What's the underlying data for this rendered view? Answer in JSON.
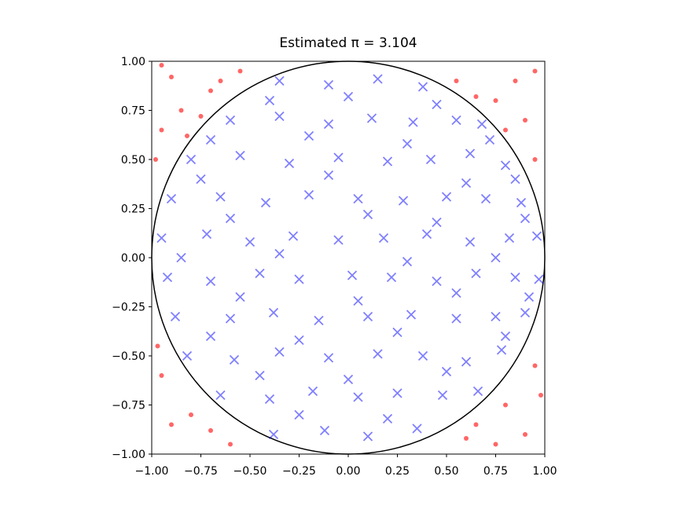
{
  "chart_data": {
    "type": "scatter",
    "title": "Estimated π = 3.104",
    "xlim": [
      -1,
      1
    ],
    "ylim": [
      -1,
      1
    ],
    "xticks": [
      {
        "value": -1,
        "label": "−1.00"
      },
      {
        "value": -0.75,
        "label": "−0.75"
      },
      {
        "value": -0.5,
        "label": "−0.50"
      },
      {
        "value": -0.25,
        "label": "−0.25"
      },
      {
        "value": 0,
        "label": "0.00"
      },
      {
        "value": 0.25,
        "label": "0.25"
      },
      {
        "value": 0.5,
        "label": "0.50"
      },
      {
        "value": 0.75,
        "label": "0.75"
      },
      {
        "value": 1,
        "label": "1.00"
      }
    ],
    "yticks": [
      {
        "value": -1,
        "label": "−1.00"
      },
      {
        "value": -0.75,
        "label": "−0.75"
      },
      {
        "value": -0.5,
        "label": "−0.50"
      },
      {
        "value": -0.25,
        "label": "−0.25"
      },
      {
        "value": 0,
        "label": "0.00"
      },
      {
        "value": 0.25,
        "label": "0.25"
      },
      {
        "value": 0.5,
        "label": "0.50"
      },
      {
        "value": 0.75,
        "label": "0.75"
      },
      {
        "value": 1,
        "label": "1.00"
      }
    ],
    "grid": false,
    "series": [
      {
        "color": "#0000ff",
        "marker": "x",
        "x": [
          -0.35,
          -0.1,
          0.15,
          0.38,
          -0.6,
          -0.35,
          -0.1,
          0.12,
          0.33,
          0.55,
          0.68,
          -0.8,
          -0.55,
          -0.3,
          -0.05,
          0.2,
          0.42,
          0.62,
          0.8,
          -0.9,
          -0.65,
          -0.42,
          -0.2,
          0.05,
          0.28,
          0.5,
          0.7,
          0.88,
          -0.95,
          -0.72,
          -0.5,
          -0.28,
          -0.05,
          0.18,
          0.4,
          0.62,
          0.82,
          0.96,
          -0.92,
          -0.7,
          -0.45,
          -0.25,
          0.02,
          0.22,
          0.45,
          0.65,
          0.85,
          0.97,
          -0.88,
          -0.6,
          -0.38,
          -0.15,
          0.1,
          0.32,
          0.55,
          0.75,
          0.9,
          -0.82,
          -0.58,
          -0.35,
          -0.1,
          0.15,
          0.38,
          0.6,
          0.78,
          -0.65,
          -0.4,
          -0.18,
          0.05,
          0.25,
          0.48,
          0.66,
          -0.38,
          -0.12,
          0.1,
          0.35,
          -0.4,
          0,
          0.45,
          -0.7,
          -0.2,
          0.3,
          0.72,
          -0.75,
          -0.1,
          0.6,
          0.85,
          -0.6,
          0.1,
          0.45,
          0.9,
          -0.85,
          -0.35,
          0.3,
          0.75,
          -0.55,
          0.05,
          0.55,
          0.92,
          -0.7,
          -0.25,
          0.25,
          0.8,
          -0.45,
          0,
          0.5,
          -0.25,
          0.2
        ],
        "values": [
          0.9,
          0.88,
          0.91,
          0.87,
          0.7,
          0.72,
          0.68,
          0.71,
          0.69,
          0.7,
          0.68,
          0.5,
          0.52,
          0.48,
          0.51,
          0.49,
          0.5,
          0.53,
          0.47,
          0.3,
          0.31,
          0.28,
          0.32,
          0.3,
          0.29,
          0.31,
          0.3,
          0.28,
          0.1,
          0.12,
          0.08,
          0.11,
          0.09,
          0.1,
          0.12,
          0.08,
          0.1,
          0.11,
          -0.1,
          -0.12,
          -0.08,
          -0.11,
          -0.09,
          -0.1,
          -0.12,
          -0.08,
          -0.1,
          -0.11,
          -0.3,
          -0.31,
          -0.28,
          -0.32,
          -0.3,
          -0.29,
          -0.31,
          -0.3,
          -0.28,
          -0.5,
          -0.52,
          -0.48,
          -0.51,
          -0.49,
          -0.5,
          -0.53,
          -0.47,
          -0.7,
          -0.72,
          -0.68,
          -0.71,
          -0.69,
          -0.7,
          -0.68,
          -0.9,
          -0.88,
          -0.91,
          -0.87,
          0.8,
          0.82,
          0.78,
          0.6,
          0.62,
          0.58,
          0.6,
          0.4,
          0.42,
          0.38,
          0.4,
          0.2,
          0.22,
          0.18,
          0.2,
          0,
          0.02,
          -0.02,
          0,
          -0.2,
          -0.22,
          -0.18,
          -0.2,
          -0.4,
          -0.42,
          -0.38,
          -0.4,
          -0.6,
          -0.62,
          -0.58,
          -0.8,
          -0.82
        ]
      },
      {
        "color": "#ff0000",
        "marker": "o",
        "x": [
          -0.95,
          -0.9,
          -0.85,
          -0.95,
          -0.82,
          -0.7,
          -0.55,
          -0.98,
          -0.75,
          0.55,
          0.65,
          0.75,
          0.85,
          0.95,
          0.9,
          0.95,
          0.8,
          -0.95,
          -0.9,
          -0.8,
          -0.7,
          -0.6,
          -0.97,
          0.65,
          0.8,
          0.9,
          0.95,
          0.75,
          0.98,
          -0.65,
          0.6
        ],
        "values": [
          0.98,
          0.92,
          0.75,
          0.65,
          0.62,
          0.85,
          0.95,
          0.5,
          0.72,
          0.9,
          0.82,
          0.8,
          0.9,
          0.95,
          0.7,
          0.5,
          0.65,
          -0.6,
          -0.85,
          -0.8,
          -0.88,
          -0.95,
          -0.45,
          -0.85,
          -0.75,
          -0.9,
          -0.55,
          -0.95,
          -0.7,
          0.9,
          -0.92
        ]
      }
    ]
  }
}
